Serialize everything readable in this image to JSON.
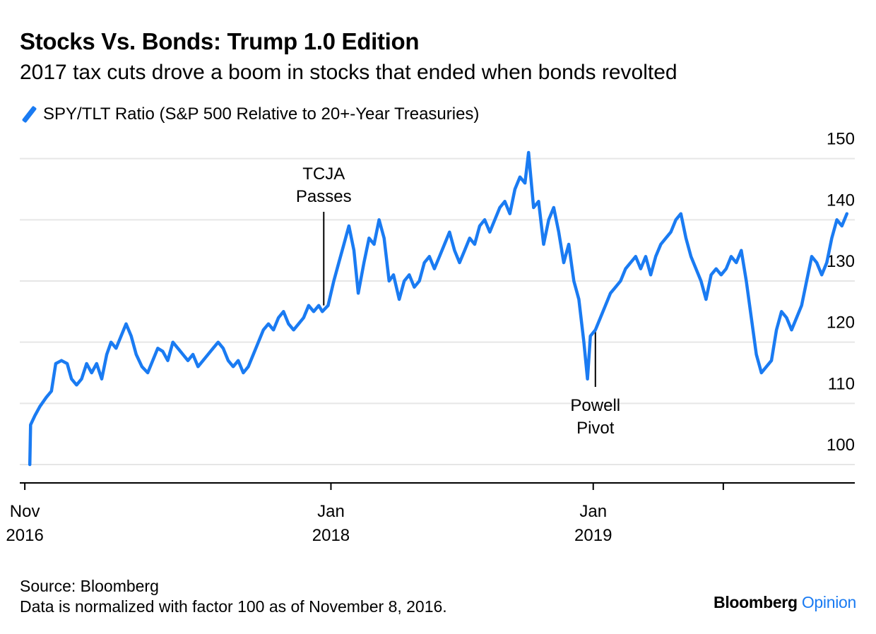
{
  "header": {
    "title": "Stocks Vs. Bonds: Trump 1.0 Edition",
    "subtitle": "2017 tax cuts drove a boom in stocks that ended when bonds revolted"
  },
  "footer": {
    "source": "Source: Bloomberg",
    "note": "Data is normalized with factor 100 as of November 8, 2016.",
    "brand_main": "Bloomberg",
    "brand_suffix": "Opinion"
  },
  "colors": {
    "line": "#1A7BF2",
    "grid": "#E6E6E6",
    "axis": "#000000"
  },
  "chart_data": {
    "type": "line",
    "title": "Stocks Vs. Bonds: Trump 1.0 Edition",
    "subtitle": "2017 tax cuts drove a boom in stocks that ended when bonds revolted",
    "legend": "top-left",
    "grid": true,
    "ylim": [
      97,
      154
    ],
    "yticks": [
      100,
      110,
      120,
      130,
      140,
      150
    ],
    "y_axis_side": "right",
    "xlim": [
      "2016-10-25",
      "2019-12-31"
    ],
    "xticks": [
      {
        "date": "2016-11-01",
        "line1": "Nov",
        "line2": "2016"
      },
      {
        "date": "2018-01-01",
        "line1": "Jan",
        "line2": "2018"
      },
      {
        "date": "2019-01-01",
        "line1": "Jan",
        "line2": "2019"
      },
      {
        "date": "2019-07-01",
        "line1": "",
        "line2": ""
      }
    ],
    "series": [
      {
        "name": "SPY/TLT Ratio (S&P 500 Relative to 20+-Year Treasuries)",
        "color": "#1A7BF2",
        "points": [
          [
            "2016-11-08",
            100
          ],
          [
            "2016-11-09",
            106.5
          ],
          [
            "2016-11-15",
            108
          ],
          [
            "2016-11-22",
            109.5
          ],
          [
            "2016-12-01",
            111
          ],
          [
            "2016-12-08",
            112
          ],
          [
            "2016-12-14",
            116.5
          ],
          [
            "2016-12-22",
            117
          ],
          [
            "2016-12-30",
            116.5
          ],
          [
            "2017-01-05",
            114
          ],
          [
            "2017-01-12",
            113
          ],
          [
            "2017-01-19",
            114
          ],
          [
            "2017-01-26",
            116.5
          ],
          [
            "2017-02-02",
            115
          ],
          [
            "2017-02-09",
            116.5
          ],
          [
            "2017-02-16",
            114
          ],
          [
            "2017-02-23",
            118
          ],
          [
            "2017-03-01",
            120
          ],
          [
            "2017-03-08",
            119
          ],
          [
            "2017-03-15",
            121
          ],
          [
            "2017-03-22",
            123
          ],
          [
            "2017-03-29",
            121
          ],
          [
            "2017-04-05",
            118
          ],
          [
            "2017-04-13",
            116
          ],
          [
            "2017-04-21",
            115
          ],
          [
            "2017-04-28",
            117
          ],
          [
            "2017-05-05",
            119
          ],
          [
            "2017-05-12",
            118.5
          ],
          [
            "2017-05-19",
            117
          ],
          [
            "2017-05-26",
            120
          ],
          [
            "2017-06-02",
            119
          ],
          [
            "2017-06-09",
            118
          ],
          [
            "2017-06-16",
            117
          ],
          [
            "2017-06-23",
            118
          ],
          [
            "2017-06-30",
            116
          ],
          [
            "2017-07-07",
            117
          ],
          [
            "2017-07-14",
            118
          ],
          [
            "2017-07-21",
            119
          ],
          [
            "2017-07-28",
            120
          ],
          [
            "2017-08-04",
            119
          ],
          [
            "2017-08-11",
            117
          ],
          [
            "2017-08-18",
            116
          ],
          [
            "2017-08-25",
            117
          ],
          [
            "2017-09-01",
            115
          ],
          [
            "2017-09-08",
            116
          ],
          [
            "2017-09-15",
            118
          ],
          [
            "2017-09-22",
            120
          ],
          [
            "2017-09-29",
            122
          ],
          [
            "2017-10-06",
            123
          ],
          [
            "2017-10-13",
            122
          ],
          [
            "2017-10-20",
            124
          ],
          [
            "2017-10-27",
            125
          ],
          [
            "2017-11-03",
            123
          ],
          [
            "2017-11-10",
            122
          ],
          [
            "2017-11-17",
            123
          ],
          [
            "2017-11-24",
            124
          ],
          [
            "2017-12-01",
            126
          ],
          [
            "2017-12-08",
            125
          ],
          [
            "2017-12-15",
            126
          ],
          [
            "2017-12-20",
            125
          ],
          [
            "2017-12-28",
            126
          ],
          [
            "2018-01-05",
            130
          ],
          [
            "2018-01-12",
            133
          ],
          [
            "2018-01-19",
            136
          ],
          [
            "2018-01-26",
            139
          ],
          [
            "2018-02-02",
            135
          ],
          [
            "2018-02-08",
            128
          ],
          [
            "2018-02-16",
            133
          ],
          [
            "2018-02-23",
            137
          ],
          [
            "2018-03-02",
            136
          ],
          [
            "2018-03-09",
            140
          ],
          [
            "2018-03-16",
            137
          ],
          [
            "2018-03-23",
            130
          ],
          [
            "2018-03-29",
            131
          ],
          [
            "2018-04-06",
            127
          ],
          [
            "2018-04-13",
            130
          ],
          [
            "2018-04-20",
            131
          ],
          [
            "2018-04-27",
            129
          ],
          [
            "2018-05-04",
            130
          ],
          [
            "2018-05-11",
            133
          ],
          [
            "2018-05-18",
            134
          ],
          [
            "2018-05-25",
            132
          ],
          [
            "2018-06-01",
            134
          ],
          [
            "2018-06-08",
            136
          ],
          [
            "2018-06-15",
            138
          ],
          [
            "2018-06-22",
            135
          ],
          [
            "2018-06-29",
            133
          ],
          [
            "2018-07-06",
            135
          ],
          [
            "2018-07-13",
            137
          ],
          [
            "2018-07-20",
            136
          ],
          [
            "2018-07-27",
            139
          ],
          [
            "2018-08-03",
            140
          ],
          [
            "2018-08-10",
            138
          ],
          [
            "2018-08-17",
            140
          ],
          [
            "2018-08-24",
            142
          ],
          [
            "2018-08-31",
            143
          ],
          [
            "2018-09-07",
            141
          ],
          [
            "2018-09-14",
            145
          ],
          [
            "2018-09-21",
            147
          ],
          [
            "2018-09-28",
            146
          ],
          [
            "2018-10-03",
            151
          ],
          [
            "2018-10-10",
            142
          ],
          [
            "2018-10-17",
            143
          ],
          [
            "2018-10-24",
            136
          ],
          [
            "2018-10-31",
            140
          ],
          [
            "2018-11-07",
            142
          ],
          [
            "2018-11-14",
            138
          ],
          [
            "2018-11-21",
            133
          ],
          [
            "2018-11-28",
            136
          ],
          [
            "2018-12-05",
            130
          ],
          [
            "2018-12-12",
            127
          ],
          [
            "2018-12-19",
            120
          ],
          [
            "2018-12-24",
            114
          ],
          [
            "2018-12-28",
            121
          ],
          [
            "2019-01-04",
            122
          ],
          [
            "2019-01-11",
            124
          ],
          [
            "2019-01-18",
            126
          ],
          [
            "2019-01-25",
            128
          ],
          [
            "2019-02-01",
            129
          ],
          [
            "2019-02-08",
            130
          ],
          [
            "2019-02-15",
            132
          ],
          [
            "2019-02-22",
            133
          ],
          [
            "2019-03-01",
            134
          ],
          [
            "2019-03-08",
            132
          ],
          [
            "2019-03-15",
            134
          ],
          [
            "2019-03-22",
            131
          ],
          [
            "2019-03-29",
            134
          ],
          [
            "2019-04-05",
            136
          ],
          [
            "2019-04-12",
            137
          ],
          [
            "2019-04-19",
            138
          ],
          [
            "2019-04-26",
            140
          ],
          [
            "2019-05-03",
            141
          ],
          [
            "2019-05-10",
            137
          ],
          [
            "2019-05-17",
            134
          ],
          [
            "2019-05-24",
            132
          ],
          [
            "2019-05-31",
            130
          ],
          [
            "2019-06-07",
            127
          ],
          [
            "2019-06-14",
            131
          ],
          [
            "2019-06-21",
            132
          ],
          [
            "2019-06-28",
            131
          ],
          [
            "2019-07-05",
            132
          ],
          [
            "2019-07-12",
            134
          ],
          [
            "2019-07-19",
            133
          ],
          [
            "2019-07-26",
            135
          ],
          [
            "2019-08-02",
            130
          ],
          [
            "2019-08-09",
            124
          ],
          [
            "2019-08-16",
            118
          ],
          [
            "2019-08-23",
            115
          ],
          [
            "2019-08-30",
            116
          ],
          [
            "2019-09-06",
            117
          ],
          [
            "2019-09-13",
            122
          ],
          [
            "2019-09-20",
            125
          ],
          [
            "2019-09-27",
            124
          ],
          [
            "2019-10-04",
            122
          ],
          [
            "2019-10-11",
            124
          ],
          [
            "2019-10-18",
            126
          ],
          [
            "2019-10-25",
            130
          ],
          [
            "2019-11-01",
            134
          ],
          [
            "2019-11-08",
            133
          ],
          [
            "2019-11-15",
            131
          ],
          [
            "2019-11-22",
            133
          ],
          [
            "2019-11-29",
            137
          ],
          [
            "2019-12-06",
            140
          ],
          [
            "2019-12-13",
            139
          ],
          [
            "2019-12-20",
            141
          ]
        ]
      }
    ],
    "annotations": [
      {
        "date": "2017-12-22",
        "value": 126,
        "lines": [
          "TCJA",
          "Passes"
        ],
        "position": "above"
      },
      {
        "date": "2019-01-04",
        "value": 122,
        "lines": [
          "Powell",
          "Pivot"
        ],
        "position": "below"
      }
    ]
  }
}
